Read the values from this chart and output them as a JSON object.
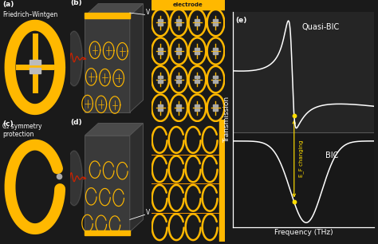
{
  "bg_color": "#1a1a1a",
  "gold_color": "#FFB800",
  "white_color": "#FFFFFF",
  "red_color": "#CC2200",
  "yellow_dot_color": "#FFDD00",
  "panel_labels": [
    "(a)",
    "(b)",
    "(c)",
    "(d)",
    "(e)"
  ],
  "text_a": "Friedrich–Wintgen",
  "text_c": "C₂ symmetry\nprotection",
  "text_quasi_bic": "Quasi-BIC",
  "text_bic": "BIC",
  "text_ef": "E_F changing",
  "text_transmission": "Transmission",
  "text_frequency": "Frequency (THz)",
  "text_electrode": "electrode",
  "figsize": [
    4.74,
    3.06
  ],
  "dpi": 100
}
